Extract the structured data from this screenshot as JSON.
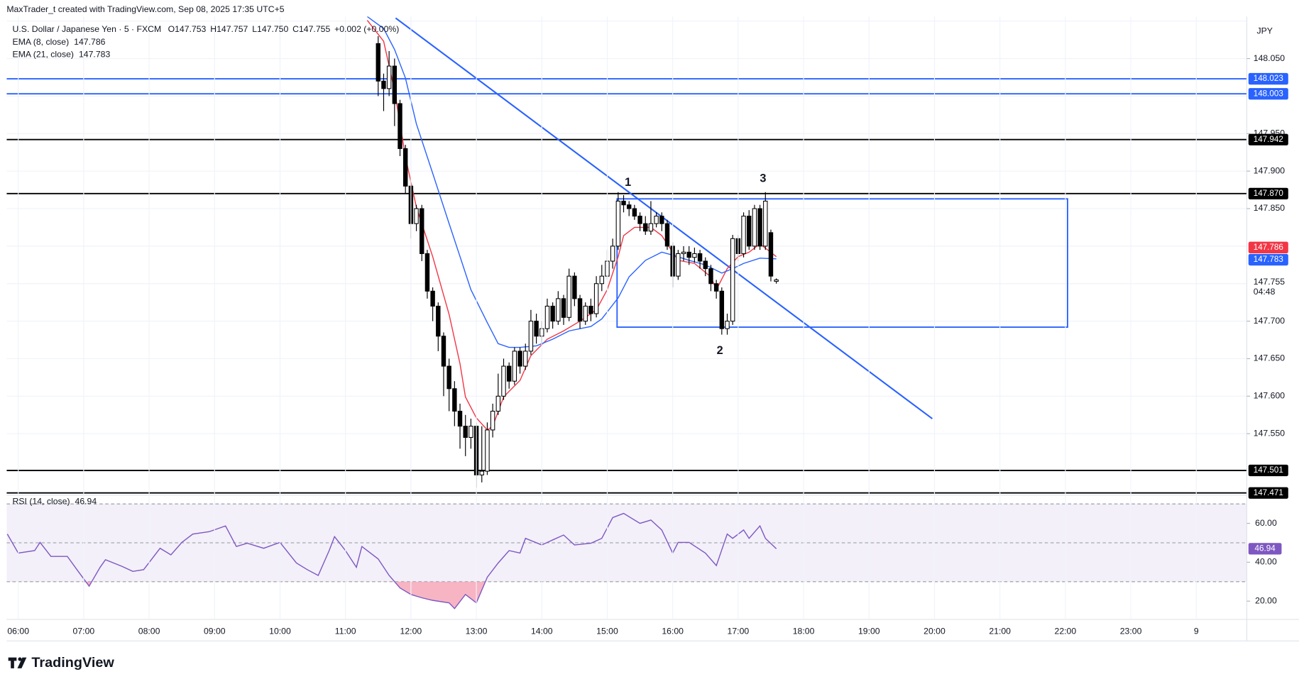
{
  "header": "MaxTrader_t created with TradingView.com, Sep 08, 2025 17:35 UTC+5",
  "logo": "TradingView",
  "chart_data": [
    {
      "type": "candlestick",
      "currency": "JPY",
      "legend": {
        "symbol": "U.S. Dollar / Japanese Yen · 5 · FXCM",
        "ohlc": [
          "O147.753",
          "H147.757",
          "L147.750",
          "C147.755"
        ],
        "change": "+0.002 (+0.00%)"
      },
      "x": [
        "11:30",
        "11:35",
        "11:40",
        "11:45",
        "11:50",
        "11:55",
        "12:00",
        "12:05",
        "12:10",
        "12:15",
        "12:20",
        "12:25",
        "12:30",
        "12:35",
        "12:40",
        "12:45",
        "12:50",
        "12:55",
        "13:00",
        "13:05",
        "13:10",
        "13:15",
        "13:20",
        "13:25",
        "13:30",
        "13:35",
        "13:40",
        "13:45",
        "13:50",
        "13:55",
        "14:00",
        "14:05",
        "14:10",
        "14:15",
        "14:20",
        "14:25",
        "14:30",
        "14:35",
        "14:40",
        "14:45",
        "14:50",
        "14:55",
        "15:00",
        "15:05",
        "15:10",
        "15:15",
        "15:20",
        "15:25",
        "15:30",
        "15:35",
        "15:40",
        "15:45",
        "15:50",
        "15:55",
        "16:00",
        "16:05",
        "16:10",
        "16:15",
        "16:20",
        "16:25",
        "16:30",
        "16:35",
        "16:40",
        "16:45",
        "16:50",
        "16:55",
        "17:00",
        "17:05",
        "17:10",
        "17:15",
        "17:20",
        "17:25",
        "17:30",
        "17:35"
      ],
      "open": [
        148.07,
        148.02,
        148.01,
        148.04,
        147.99,
        147.93,
        147.88,
        147.83,
        147.85,
        147.79,
        147.74,
        147.72,
        147.68,
        147.64,
        147.61,
        147.58,
        147.56,
        147.545,
        147.56,
        147.495,
        147.5,
        147.555,
        147.58,
        147.6,
        147.64,
        147.62,
        147.66,
        147.64,
        147.66,
        147.7,
        147.68,
        147.69,
        147.72,
        147.7,
        147.73,
        147.705,
        147.76,
        147.73,
        147.7,
        147.72,
        147.71,
        147.75,
        147.76,
        147.78,
        147.8,
        147.86,
        147.855,
        147.85,
        147.84,
        147.83,
        147.82,
        147.83,
        147.84,
        147.83,
        147.8,
        147.76,
        147.79,
        147.792,
        147.785,
        147.79,
        147.78,
        147.77,
        147.75,
        147.74,
        147.69,
        147.7,
        147.81,
        147.79,
        147.84,
        147.8,
        147.85,
        147.8,
        147.818,
        147.753
      ],
      "high": [
        148.08,
        148.03,
        148.06,
        148.05,
        147.995,
        147.935,
        147.885,
        147.855,
        147.855,
        147.795,
        147.745,
        147.725,
        147.685,
        147.65,
        147.62,
        147.59,
        147.575,
        147.57,
        147.565,
        147.56,
        147.565,
        147.59,
        147.63,
        147.65,
        147.645,
        147.665,
        147.665,
        147.67,
        147.715,
        147.71,
        147.7,
        147.73,
        147.725,
        147.74,
        147.735,
        147.77,
        147.765,
        147.735,
        147.725,
        147.73,
        147.76,
        147.775,
        147.795,
        147.81,
        147.872,
        147.868,
        147.86,
        147.855,
        147.845,
        147.84,
        147.86,
        147.845,
        147.845,
        147.835,
        147.805,
        147.795,
        147.8,
        147.8,
        147.798,
        147.795,
        147.785,
        147.775,
        147.755,
        147.745,
        147.71,
        147.815,
        147.815,
        147.845,
        147.848,
        147.855,
        147.855,
        147.872,
        147.822,
        147.757
      ],
      "low": [
        148.0,
        147.98,
        148.0,
        147.96,
        147.92,
        147.87,
        147.81,
        147.82,
        147.78,
        147.73,
        147.7,
        147.66,
        147.6,
        147.58,
        147.56,
        147.53,
        147.52,
        147.53,
        147.478,
        147.485,
        147.495,
        147.545,
        147.575,
        147.595,
        147.61,
        147.615,
        147.63,
        147.635,
        147.655,
        147.67,
        147.67,
        147.685,
        147.69,
        147.695,
        147.695,
        147.7,
        147.72,
        147.69,
        147.695,
        147.7,
        147.705,
        147.74,
        147.755,
        147.77,
        147.795,
        147.845,
        147.84,
        147.835,
        147.82,
        147.815,
        147.815,
        147.825,
        147.82,
        147.795,
        147.745,
        147.755,
        147.78,
        147.775,
        147.778,
        147.77,
        147.76,
        147.74,
        147.73,
        147.682,
        147.682,
        147.695,
        147.78,
        147.785,
        147.795,
        147.795,
        147.795,
        147.795,
        147.753,
        147.75
      ],
      "close": [
        148.02,
        148.01,
        148.04,
        147.99,
        147.93,
        147.88,
        147.83,
        147.85,
        147.79,
        147.74,
        147.72,
        147.68,
        147.64,
        147.61,
        147.58,
        147.56,
        147.545,
        147.56,
        147.495,
        147.5,
        147.555,
        147.58,
        147.6,
        147.64,
        147.62,
        147.66,
        147.64,
        147.66,
        147.7,
        147.68,
        147.69,
        147.72,
        147.7,
        147.73,
        147.705,
        147.76,
        147.73,
        147.7,
        147.72,
        147.71,
        147.75,
        147.76,
        147.78,
        147.8,
        147.86,
        147.855,
        147.85,
        147.84,
        147.83,
        147.82,
        147.83,
        147.84,
        147.83,
        147.8,
        147.76,
        147.79,
        147.792,
        147.785,
        147.79,
        147.78,
        147.77,
        147.75,
        147.74,
        147.69,
        147.7,
        147.81,
        147.79,
        147.84,
        147.8,
        147.85,
        147.8,
        147.86,
        147.76,
        147.755
      ],
      "up_color": "#ffffff",
      "down_color": "#000000",
      "countdown": "04:48",
      "ylim": [
        147.468,
        148.106
      ],
      "yticks": [
        {
          "value": 148.05,
          "label": "148.050"
        },
        {
          "value": 147.95,
          "label": "147.950"
        },
        {
          "value": 147.9,
          "label": "147.900"
        },
        {
          "value": 147.85,
          "label": "147.850"
        },
        {
          "value": 147.7,
          "label": "147.700"
        },
        {
          "value": 147.65,
          "label": "147.650"
        },
        {
          "value": 147.6,
          "label": "147.600"
        },
        {
          "value": 147.55,
          "label": "147.550"
        }
      ],
      "ygrid": [
        148.1,
        148.05,
        148.0,
        147.95,
        147.9,
        147.85,
        147.8,
        147.75,
        147.7,
        147.65,
        147.6,
        147.55,
        147.5
      ],
      "xticks": [
        "06:00",
        "07:00",
        "08:00",
        "09:00",
        "10:00",
        "11:00",
        "12:00",
        "13:00",
        "14:00",
        "15:00",
        "16:00",
        "17:00",
        "18:00",
        "19:00",
        "20:00",
        "21:00",
        "22:00",
        "23:00",
        "9"
      ],
      "grid": true,
      "indicators": [
        {
          "name": "EMA (8, close)",
          "color": "#f23645",
          "x": [
            "11:20",
            "11:35",
            "11:45",
            "11:55",
            "12:05",
            "12:20",
            "12:35",
            "12:45",
            "12:50",
            "13:00",
            "13:10",
            "13:15",
            "13:25",
            "13:40",
            "13:50",
            "14:05",
            "14:20",
            "14:35",
            "14:50",
            "15:00",
            "15:10",
            "15:15",
            "15:25",
            "15:40",
            "15:50",
            "16:00",
            "16:05",
            "16:20",
            "16:35",
            "16:40",
            "16:50",
            "17:00",
            "17:10",
            "17:20",
            "17:35"
          ],
          "values": [
            148.101,
            148.073,
            148.007,
            147.919,
            147.852,
            147.786,
            147.709,
            147.643,
            147.599,
            147.571,
            147.555,
            147.56,
            147.599,
            147.621,
            147.654,
            147.676,
            147.687,
            147.7,
            147.715,
            147.742,
            147.786,
            147.814,
            147.825,
            147.825,
            147.814,
            147.792,
            147.781,
            147.777,
            147.759,
            147.742,
            147.77,
            147.786,
            147.792,
            147.803,
            147.786
          ]
        },
        {
          "name": "EMA (21, close)",
          "color": "#2962ff",
          "x": [
            "11:20",
            "11:35",
            "11:45",
            "11:55",
            "12:05",
            "12:20",
            "12:35",
            "12:45",
            "12:55",
            "13:10",
            "13:20",
            "13:30",
            "13:40",
            "13:55",
            "14:10",
            "14:25",
            "14:45",
            "14:55",
            "15:10",
            "15:20",
            "15:35",
            "15:50",
            "16:00",
            "16:15",
            "16:30",
            "16:45",
            "16:55",
            "17:05",
            "17:20",
            "17:35"
          ],
          "values": [
            148.106,
            148.09,
            148.062,
            148.024,
            147.963,
            147.897,
            147.83,
            147.786,
            147.742,
            147.698,
            147.67,
            147.665,
            147.665,
            147.667,
            147.676,
            147.687,
            147.693,
            147.703,
            147.731,
            147.759,
            147.781,
            147.792,
            147.788,
            147.781,
            147.775,
            147.764,
            147.77,
            147.777,
            147.784,
            147.783
          ]
        }
      ],
      "levels": [
        {
          "value": 148.023,
          "color": "#2962ff"
        },
        {
          "value": 148.003,
          "color": "#2962ff"
        },
        {
          "value": 147.942,
          "color": "#000000"
        },
        {
          "value": 147.87,
          "label": "147.870",
          "color": "#000000"
        },
        {
          "value": 147.501,
          "color": "#000000"
        },
        {
          "value": 147.471,
          "color": "#000000"
        }
      ],
      "drawings": {
        "trendline": {
          "color": "#2962ff",
          "x": [
            "11:46",
            "19:58"
          ],
          "y": [
            148.104,
            147.57
          ]
        },
        "rectangle": {
          "color": "#2962ff",
          "x": [
            "15:09",
            "22:02"
          ],
          "y": [
            147.863,
            147.692
          ]
        }
      },
      "annotations": [
        "1",
        "2",
        "3"
      ]
    },
    {
      "type": "line",
      "name": "RSI (14, close)",
      "color": "#7e57c2",
      "oversold_color": "#f5a3b5",
      "x": [
        "05:50",
        "06:00",
        "06:15",
        "06:20",
        "06:30",
        "06:45",
        "06:55",
        "07:05",
        "07:15",
        "07:20",
        "07:35",
        "07:45",
        "07:55",
        "08:10",
        "08:20",
        "08:30",
        "08:40",
        "08:55",
        "09:10",
        "09:20",
        "09:30",
        "09:45",
        "10:00",
        "10:15",
        "10:25",
        "10:35",
        "10:45",
        "10:50",
        "11:00",
        "11:10",
        "11:15",
        "11:30",
        "11:40",
        "11:50",
        "12:00",
        "12:10",
        "12:20",
        "12:35",
        "12:40",
        "12:50",
        "13:00",
        "13:10",
        "13:20",
        "13:30",
        "13:40",
        "13:45",
        "14:00",
        "14:10",
        "14:20",
        "14:30",
        "14:45",
        "14:55",
        "15:05",
        "15:15",
        "15:30",
        "15:40",
        "15:50",
        "16:00",
        "16:05",
        "16:15",
        "16:30",
        "16:40",
        "16:50",
        "16:55",
        "17:05",
        "17:10",
        "17:20",
        "17:25",
        "17:35"
      ],
      "values": [
        54.5,
        44.7,
        46.0,
        50.2,
        43.0,
        43.0,
        35.3,
        27.7,
        37.4,
        41.3,
        37.9,
        35.3,
        36.2,
        47.2,
        43.8,
        50.2,
        54.5,
        55.7,
        58.7,
        48.1,
        49.8,
        47.2,
        50.2,
        39.6,
        36.2,
        33.2,
        46.0,
        53.2,
        46.0,
        37.4,
        48.1,
        41.7,
        33.2,
        26.8,
        23.4,
        21.7,
        20.4,
        19.1,
        16.2,
        23.4,
        19.1,
        32.3,
        39.6,
        46.0,
        44.7,
        52.3,
        48.9,
        51.5,
        54.0,
        48.9,
        49.8,
        52.3,
        63.0,
        65.1,
        60.0,
        61.7,
        56.6,
        44.7,
        50.2,
        50.2,
        44.7,
        38.3,
        54.5,
        52.3,
        56.6,
        52.3,
        58.7,
        52.3,
        46.94
      ],
      "ylim": [
        10.6,
        71.5
      ],
      "yticks": [
        {
          "value": 60,
          "label": "60.00"
        },
        {
          "value": 40,
          "label": "40.00"
        },
        {
          "value": 20,
          "label": "20.00"
        }
      ],
      "band": [
        30,
        70
      ],
      "midline": 50
    }
  ]
}
